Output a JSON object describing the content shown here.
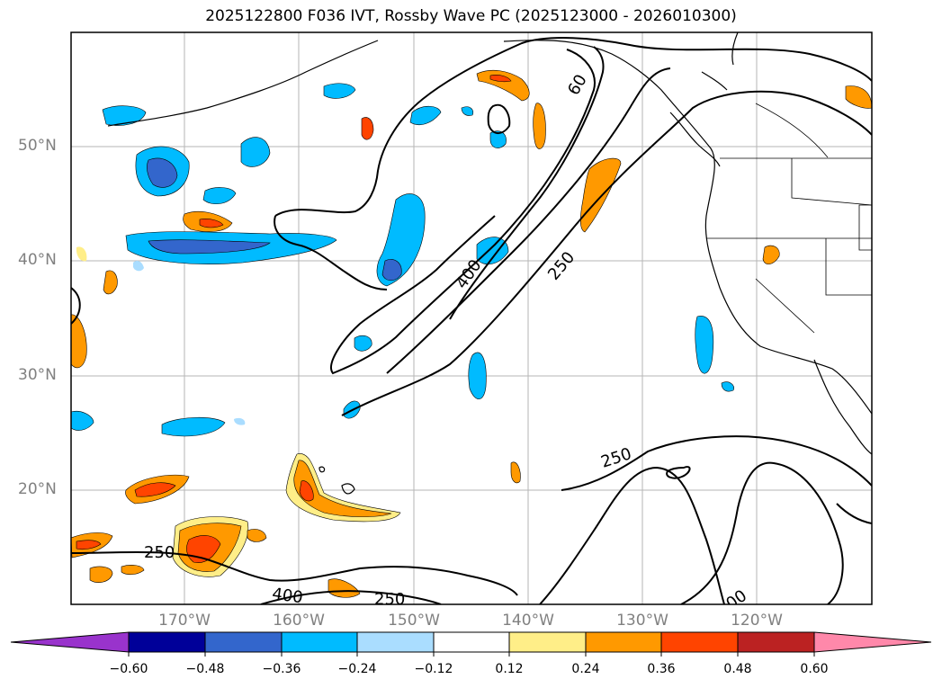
{
  "title": "2025122800 F036 IVT, Rossby Wave PC (2025123000 - 2026010300)",
  "map": {
    "lat_labels": [
      "50°N",
      "40°N",
      "30°N",
      "20°N"
    ],
    "lon_labels": [
      "170°W",
      "160°W",
      "150°W",
      "140°W",
      "130°W",
      "120°W"
    ],
    "contour_labels": [
      "60",
      "400",
      "250",
      "250",
      "250",
      "400",
      "250",
      "00"
    ]
  },
  "colorbar": {
    "ticks": [
      "−0.60",
      "−0.48",
      "−0.36",
      "−0.24",
      "−0.12",
      "0.12",
      "0.24",
      "0.36",
      "0.48",
      "0.60"
    ],
    "colors": [
      "#9933cc",
      "#000099",
      "#3366cc",
      "#00bbff",
      "#aaddff",
      "#ffffff",
      "#ffee88",
      "#ff9900",
      "#ff4400",
      "#bb2222",
      "#ff88aa"
    ],
    "extend_low_color": "#9933cc",
    "extend_high_color": "#ff88aa"
  }
}
